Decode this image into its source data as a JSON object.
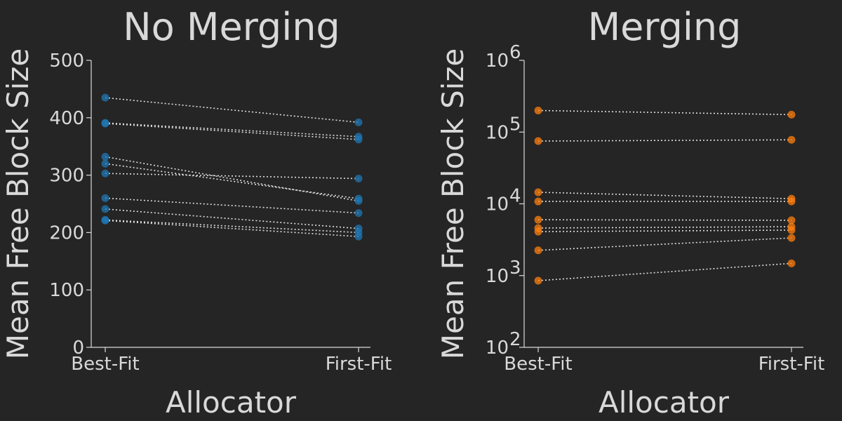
{
  "colors": {
    "background": "#252525",
    "text": "#d9d9d9",
    "no_merging_points": "#1f77b4",
    "merging_points": "#ff7f0e"
  },
  "chart_data": [
    {
      "type": "scatter",
      "title": "No Merging",
      "xlabel": "Allocator",
      "ylabel": "Mean Free Block Size",
      "categories": [
        "Best-Fit",
        "First-Fit"
      ],
      "yscale": "linear",
      "ylim": [
        0,
        500
      ],
      "yticks": [
        0,
        100,
        200,
        300,
        400,
        500
      ],
      "ytick_labels": [
        "0",
        "100",
        "200",
        "300",
        "400",
        "500"
      ],
      "pairs": [
        [
          435,
          392
        ],
        [
          391,
          367
        ],
        [
          390,
          362
        ],
        [
          332,
          255
        ],
        [
          320,
          259
        ],
        [
          303,
          294
        ],
        [
          260,
          234
        ],
        [
          241,
          207
        ],
        [
          222,
          200
        ],
        [
          221,
          193
        ]
      ],
      "grid": false
    },
    {
      "type": "scatter",
      "title": "Merging",
      "xlabel": "Allocator",
      "ylabel": "Mean Free Block Size",
      "categories": [
        "Best-Fit",
        "First-Fit"
      ],
      "yscale": "log",
      "ylim": [
        100,
        1000000
      ],
      "yticks": [
        100,
        1000,
        10000,
        100000,
        1000000
      ],
      "ytick_labels": [
        {
          "base": "10",
          "exp": "2"
        },
        {
          "base": "10",
          "exp": "3"
        },
        {
          "base": "10",
          "exp": "4"
        },
        {
          "base": "10",
          "exp": "5"
        },
        {
          "base": "10",
          "exp": "6"
        }
      ],
      "pairs": [
        [
          200000,
          175000
        ],
        [
          75000,
          78000
        ],
        [
          14500,
          11800
        ],
        [
          10800,
          10800
        ],
        [
          6000,
          5900
        ],
        [
          4600,
          4800
        ],
        [
          4100,
          4300
        ],
        [
          2250,
          3350
        ],
        [
          850,
          1480
        ]
      ],
      "grid": false
    }
  ]
}
